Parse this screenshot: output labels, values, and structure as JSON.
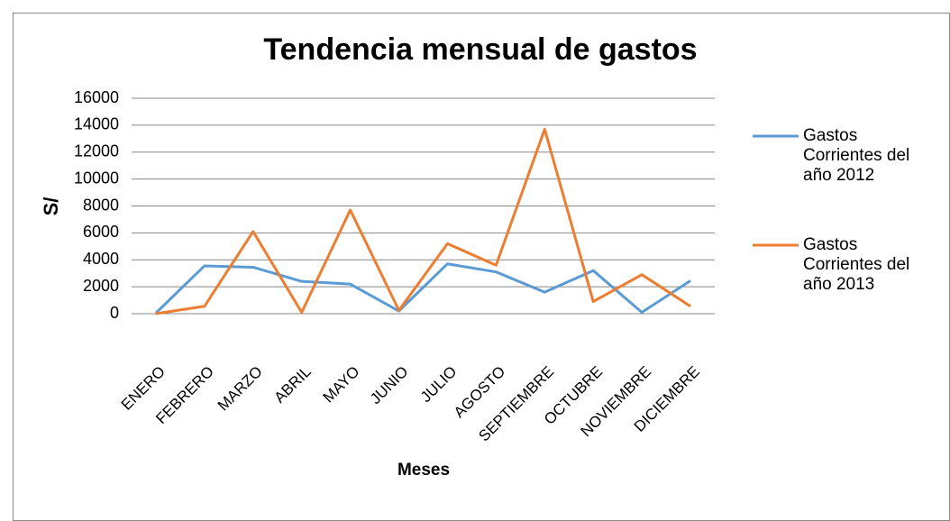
{
  "chart_data": {
    "type": "line",
    "title": "Tendencia mensual de gastos",
    "x_label": "Meses",
    "y_label": "S/",
    "categories": [
      "ENERO",
      "FEBRERO",
      "MARZO",
      "ABRIL",
      "MAYO",
      "JUNIO",
      "JULIO",
      "AGOSTO",
      "SEPTIEMBRE",
      "OCTUBRE",
      "NOVIEMBRE",
      "DICIEMBRE"
    ],
    "series": [
      {
        "name": "Gastos Corrientes del año 2012",
        "color": "#5b9bd5",
        "values": [
          50,
          3550,
          3450,
          2400,
          2200,
          200,
          3700,
          3100,
          1600,
          3200,
          100,
          2450
        ]
      },
      {
        "name": "Gastos Corrientes del año 2013",
        "color": "#ed7d31",
        "values": [
          0,
          550,
          6100,
          100,
          7700,
          250,
          5200,
          3600,
          13700,
          900,
          2900,
          550
        ]
      }
    ],
    "ylim": [
      0,
      16000
    ],
    "yticks": [
      0,
      2000,
      4000,
      6000,
      8000,
      10000,
      12000,
      14000,
      16000
    ],
    "grid": true,
    "legend": "right"
  }
}
